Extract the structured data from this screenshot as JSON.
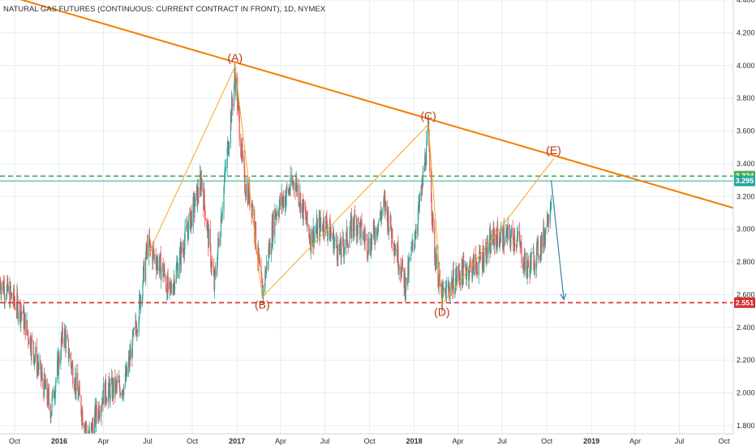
{
  "chart_data": {
    "type": "candlestick",
    "title": "NATURAL GAS FUTURES (CONTINUOUS: CURRENT CONTRACT IN FRONT), 1D, NYMEX",
    "y_range": [
      1.75,
      4.4
    ],
    "y_ticks": [
      "4.400",
      "4.200",
      "4.000",
      "3.800",
      "3.600",
      "3.400",
      "3.200",
      "3.000",
      "2.800",
      "2.600",
      "2.400",
      "2.200",
      "2.000",
      "1.800"
    ],
    "x_range": [
      "2015-09-01",
      "2019-10-20"
    ],
    "x_ticks": [
      {
        "date": "2015-10-01",
        "label": "Oct",
        "major": false
      },
      {
        "date": "2016-01-01",
        "label": "2016",
        "major": true
      },
      {
        "date": "2016-04-01",
        "label": "Apr",
        "major": false
      },
      {
        "date": "2016-07-01",
        "label": "Jul",
        "major": false
      },
      {
        "date": "2016-10-01",
        "label": "Oct",
        "major": false
      },
      {
        "date": "2017-01-01",
        "label": "2017",
        "major": true
      },
      {
        "date": "2017-04-01",
        "label": "Apr",
        "major": false
      },
      {
        "date": "2017-07-01",
        "label": "Jul",
        "major": false
      },
      {
        "date": "2017-10-01",
        "label": "Oct",
        "major": false
      },
      {
        "date": "2018-01-01",
        "label": "2018",
        "major": true
      },
      {
        "date": "2018-04-01",
        "label": "Apr",
        "major": false
      },
      {
        "date": "2018-07-01",
        "label": "Jul",
        "major": false
      },
      {
        "date": "2018-10-01",
        "label": "Oct",
        "major": false
      },
      {
        "date": "2019-01-01",
        "label": "2019",
        "major": true
      },
      {
        "date": "2019-04-01",
        "label": "Apr",
        "major": false
      },
      {
        "date": "2019-07-01",
        "label": "Jul",
        "major": false
      },
      {
        "date": "2019-10-01",
        "label": "Oct",
        "major": false
      }
    ],
    "price_path": [
      {
        "date": "2015-09-01",
        "price": 2.68
      },
      {
        "date": "2015-10-15",
        "price": 2.5
      },
      {
        "date": "2015-12-15",
        "price": 1.9
      },
      {
        "date": "2016-01-10",
        "price": 2.38
      },
      {
        "date": "2016-03-01",
        "price": 1.72
      },
      {
        "date": "2016-04-01",
        "price": 2.0
      },
      {
        "date": "2016-05-15",
        "price": 2.05
      },
      {
        "date": "2016-06-10",
        "price": 2.45
      },
      {
        "date": "2016-07-01",
        "price": 2.9
      },
      {
        "date": "2016-08-01",
        "price": 2.75
      },
      {
        "date": "2016-08-15",
        "price": 2.6
      },
      {
        "date": "2016-10-01",
        "price": 3.1
      },
      {
        "date": "2016-10-20",
        "price": 3.3
      },
      {
        "date": "2016-11-15",
        "price": 2.65
      },
      {
        "date": "2016-12-28",
        "price": 3.95
      },
      {
        "date": "2017-01-15",
        "price": 3.3
      },
      {
        "date": "2017-02-01",
        "price": 3.15
      },
      {
        "date": "2017-02-22",
        "price": 2.6
      },
      {
        "date": "2017-03-20",
        "price": 3.1
      },
      {
        "date": "2017-05-01",
        "price": 3.3
      },
      {
        "date": "2017-06-01",
        "price": 2.95
      },
      {
        "date": "2017-07-01",
        "price": 3.05
      },
      {
        "date": "2017-08-01",
        "price": 2.85
      },
      {
        "date": "2017-09-01",
        "price": 3.05
      },
      {
        "date": "2017-10-01",
        "price": 2.9
      },
      {
        "date": "2017-11-01",
        "price": 3.15
      },
      {
        "date": "2017-12-15",
        "price": 2.65
      },
      {
        "date": "2018-01-15",
        "price": 3.2
      },
      {
        "date": "2018-01-30",
        "price": 3.6
      },
      {
        "date": "2018-02-10",
        "price": 2.9
      },
      {
        "date": "2018-02-27",
        "price": 2.58
      },
      {
        "date": "2018-04-01",
        "price": 2.72
      },
      {
        "date": "2018-05-15",
        "price": 2.8
      },
      {
        "date": "2018-06-15",
        "price": 2.95
      },
      {
        "date": "2018-08-01",
        "price": 2.95
      },
      {
        "date": "2018-08-20",
        "price": 2.75
      },
      {
        "date": "2018-09-10",
        "price": 2.85
      },
      {
        "date": "2018-09-25",
        "price": 2.95
      },
      {
        "date": "2018-10-10",
        "price": 3.2
      }
    ],
    "annotations": {
      "horizontal_lines": [
        {
          "price": 3.324,
          "label": "3.324",
          "color": "#4caf50",
          "style": "dashed"
        },
        {
          "price": 3.295,
          "label": "3.295",
          "color": "#26a69a",
          "style": "solid"
        },
        {
          "price": 2.551,
          "label": "2.551",
          "color": "#d32f2f",
          "style": "dashed"
        }
      ],
      "trendline": {
        "color": "#f57c00",
        "points": [
          {
            "date": "2015-09-01",
            "price": 4.44
          },
          {
            "date": "2019-10-20",
            "price": 3.13
          }
        ]
      },
      "wave_points": [
        {
          "label": "(A)",
          "date": "2016-12-28",
          "price": 3.994
        },
        {
          "label": "(B)",
          "date": "2017-02-22",
          "price": 2.585
        },
        {
          "label": "(C)",
          "date": "2018-01-30",
          "price": 3.64
        },
        {
          "label": "(D)",
          "date": "2018-02-27",
          "price": 2.54
        },
        {
          "label": "(E)",
          "date": "2018-10-15",
          "price": 3.43
        }
      ],
      "zigzag": [
        {
          "date": "2016-07-01",
          "price": 2.84
        },
        {
          "date": "2016-12-28",
          "price": 3.994
        },
        {
          "date": "2017-02-22",
          "price": 2.585
        },
        {
          "date": "2018-01-30",
          "price": 3.64
        },
        {
          "date": "2018-02-27",
          "price": 2.54
        },
        {
          "date": "2018-10-15",
          "price": 3.43
        }
      ],
      "projection": {
        "color": "#4a88a8",
        "from": {
          "date": "2018-10-10",
          "price": 3.3
        },
        "to": {
          "date": "2018-11-05",
          "price": 2.57
        }
      }
    },
    "colors": {
      "up": "#26a69a",
      "down": "#ef5350",
      "grid": "#e8ecf0",
      "axis": "#cfd4da"
    }
  }
}
